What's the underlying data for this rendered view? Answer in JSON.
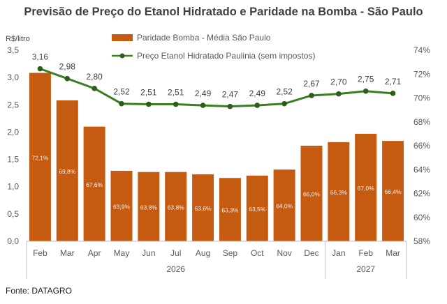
{
  "title": "Previsão de Preço do Etanol Hidratado e Paridade na Bomba - São Paulo",
  "source": "Fonte: DATAGRO",
  "colors": {
    "bar": "#c55a11",
    "line": "#3a7d22",
    "marker": "#2b5f19",
    "text": "#404040"
  },
  "chart_data": {
    "type": "bar",
    "combo": "bar+line",
    "categories": [
      "Feb",
      "Mar",
      "Apr",
      "May",
      "Jun",
      "Jul",
      "Aug",
      "Sep",
      "Oct",
      "Nov",
      "Dec",
      "Jan",
      "Feb",
      "Mar"
    ],
    "year_groups": [
      {
        "label": "2026",
        "from": 0,
        "to": 10
      },
      {
        "label": "2027",
        "from": 11,
        "to": 13
      }
    ],
    "left_axis": {
      "label": "R$/litro",
      "min": 0,
      "max": 3.5,
      "ticks": [
        "0,0",
        "0,5",
        "1,0",
        "1,5",
        "2,0",
        "2,5",
        "3,0",
        "3,5"
      ]
    },
    "right_axis": {
      "label": "",
      "min": 0.58,
      "max": 0.74,
      "ticks": [
        "58%",
        "60%",
        "62%",
        "64%",
        "66%",
        "68%",
        "70%",
        "72%",
        "74%"
      ]
    },
    "series": [
      {
        "name": "Paridade Bomba - Média São Paulo",
        "type": "bar",
        "axis": "right",
        "values": [
          0.721,
          0.698,
          0.676,
          0.639,
          0.638,
          0.638,
          0.636,
          0.633,
          0.635,
          0.64,
          0.66,
          0.663,
          0.67,
          0.664
        ],
        "labels": [
          "72,1%",
          "69,8%",
          "67,6%",
          "63,9%",
          "63,8%",
          "63,8%",
          "63,6%",
          "63,3%",
          "63,5%",
          "64,0%",
          "66,0%",
          "66,3%",
          "67,0%",
          "66,4%"
        ]
      },
      {
        "name": "Preço Etanol Hidratado Paulinia (sem impostos)",
        "type": "line",
        "axis": "left",
        "values": [
          3.16,
          2.98,
          2.8,
          2.52,
          2.51,
          2.51,
          2.49,
          2.47,
          2.49,
          2.52,
          2.67,
          2.7,
          2.75,
          2.71
        ],
        "labels": [
          "3,16",
          "2,98",
          "2,80",
          "2,52",
          "2,51",
          "2,51",
          "2,49",
          "2,47",
          "2,49",
          "2,52",
          "2,67",
          "2,70",
          "2,75",
          "2,71"
        ]
      }
    ],
    "grid": false,
    "legend_position": "top"
  }
}
